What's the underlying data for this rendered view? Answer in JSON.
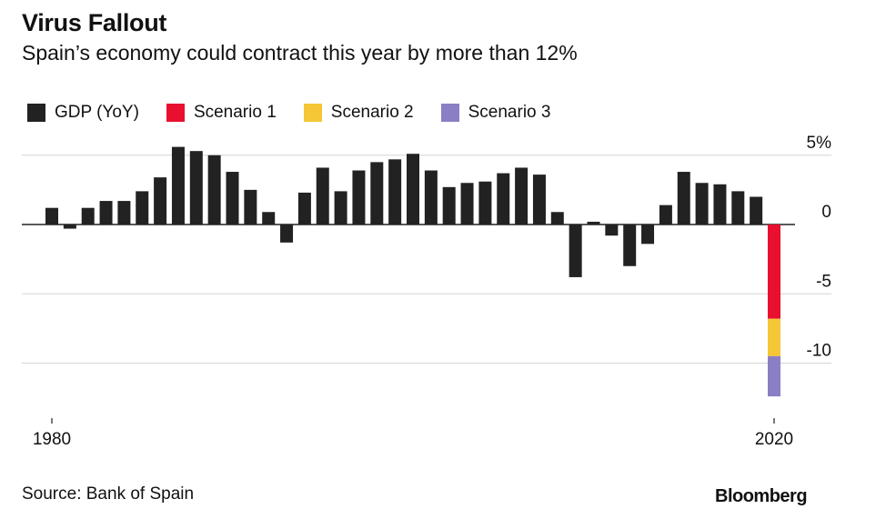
{
  "chart_data": {
    "type": "bar",
    "title": "Virus Fallout",
    "subtitle": "Spain’s economy could contract this year by more than 12%",
    "legend": [
      {
        "name": "GDP (YoY)",
        "color": "#222222"
      },
      {
        "name": "Scenario 1",
        "color": "#e8102e"
      },
      {
        "name": "Scenario 2",
        "color": "#f5c636"
      },
      {
        "name": "Scenario 3",
        "color": "#8a7fc4"
      }
    ],
    "y_ticks": [
      {
        "value": 5,
        "label": "5%"
      },
      {
        "value": 0,
        "label": "0"
      },
      {
        "value": -5,
        "label": "-5"
      },
      {
        "value": -10,
        "label": "-10"
      }
    ],
    "ylim": [
      -13,
      6
    ],
    "x_ticks": [
      {
        "value": 1980,
        "label": "1980"
      },
      {
        "value": 2020,
        "label": "2020"
      }
    ],
    "xlim": [
      1980,
      2020
    ],
    "series": [
      {
        "name": "GDP (YoY)",
        "x": [
          1980,
          1981,
          1982,
          1983,
          1984,
          1985,
          1986,
          1987,
          1988,
          1989,
          1990,
          1991,
          1992,
          1993,
          1994,
          1995,
          1996,
          1997,
          1998,
          1999,
          2000,
          2001,
          2002,
          2003,
          2004,
          2005,
          2006,
          2007,
          2008,
          2009,
          2010,
          2011,
          2012,
          2013,
          2014,
          2015,
          2016,
          2017,
          2018,
          2019
        ],
        "values": [
          1.2,
          -0.3,
          1.2,
          1.7,
          1.7,
          2.4,
          3.4,
          5.6,
          5.3,
          5.0,
          3.8,
          2.5,
          0.9,
          -1.3,
          2.3,
          4.1,
          2.4,
          3.9,
          4.5,
          4.7,
          5.1,
          3.9,
          2.7,
          3.0,
          3.1,
          3.7,
          4.1,
          3.6,
          0.9,
          -3.8,
          0.2,
          -0.8,
          -3.0,
          -1.4,
          1.4,
          3.8,
          3.0,
          2.9,
          2.4,
          2.0
        ]
      },
      {
        "name": "Scenario 1",
        "x": [
          2020
        ],
        "range": [
          0,
          -6.8
        ]
      },
      {
        "name": "Scenario 2",
        "x": [
          2020
        ],
        "range": [
          -6.8,
          -9.5
        ]
      },
      {
        "name": "Scenario 3",
        "x": [
          2020
        ],
        "range": [
          -9.5,
          -12.4
        ]
      }
    ]
  },
  "source": "Source: Bank of Spain",
  "brand": "Bloomberg"
}
